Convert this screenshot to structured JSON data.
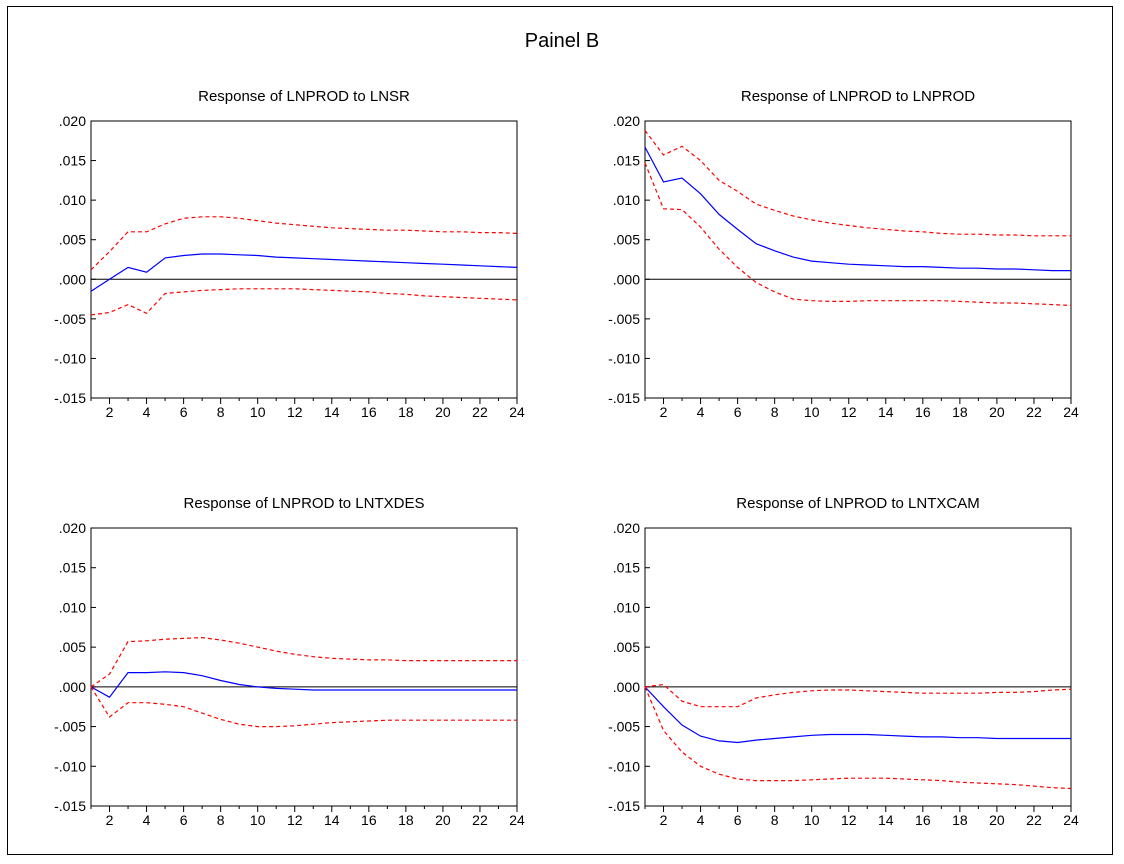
{
  "figure": {
    "title": "Painel B"
  },
  "colors": {
    "response": "#0000ff",
    "band": "#ff0000",
    "zero_line": "#000000"
  },
  "chart_data": [
    {
      "type": "line",
      "title": "Response of LNPROD to LNSR",
      "xlabel": "",
      "ylabel": "",
      "xlim": [
        1,
        24
      ],
      "ylim": [
        -0.015,
        0.02
      ],
      "xticks": [
        "2",
        "4",
        "6",
        "8",
        "10",
        "12",
        "14",
        "16",
        "18",
        "20",
        "22",
        "24"
      ],
      "yticks": [
        ".020",
        ".015",
        ".010",
        ".005",
        ".000",
        "-.005",
        "-.010",
        "-.015"
      ],
      "x": [
        1,
        2,
        3,
        4,
        5,
        6,
        7,
        8,
        9,
        10,
        11,
        12,
        13,
        14,
        15,
        16,
        17,
        18,
        19,
        20,
        21,
        22,
        23,
        24
      ],
      "series": [
        {
          "role": "response",
          "values": [
            -0.0015,
            0.0,
            0.0015,
            0.0009,
            0.0027,
            0.003,
            0.0032,
            0.0032,
            0.0031,
            0.003,
            0.0028,
            0.0027,
            0.0026,
            0.0025,
            0.0024,
            0.0023,
            0.0022,
            0.0021,
            0.002,
            0.0019,
            0.0018,
            0.0017,
            0.0016,
            0.0015
          ]
        },
        {
          "role": "upper",
          "values": [
            0.0012,
            0.0035,
            0.006,
            0.006,
            0.007,
            0.0077,
            0.0079,
            0.0079,
            0.0077,
            0.0074,
            0.0071,
            0.0069,
            0.0067,
            0.0065,
            0.0064,
            0.0063,
            0.0062,
            0.0062,
            0.0061,
            0.006,
            0.006,
            0.0059,
            0.0059,
            0.0058
          ]
        },
        {
          "role": "lower",
          "values": [
            -0.0045,
            -0.0042,
            -0.0032,
            -0.0043,
            -0.0018,
            -0.0016,
            -0.0014,
            -0.0013,
            -0.0012,
            -0.0012,
            -0.0012,
            -0.0012,
            -0.0013,
            -0.0014,
            -0.0015,
            -0.0016,
            -0.0018,
            -0.0019,
            -0.0021,
            -0.0022,
            -0.0023,
            -0.0024,
            -0.0025,
            -0.0026
          ]
        }
      ]
    },
    {
      "type": "line",
      "title": "Response of LNPROD to LNPROD",
      "xlabel": "",
      "ylabel": "",
      "xlim": [
        1,
        24
      ],
      "ylim": [
        -0.015,
        0.02
      ],
      "xticks": [
        "2",
        "4",
        "6",
        "8",
        "10",
        "12",
        "14",
        "16",
        "18",
        "20",
        "22",
        "24"
      ],
      "yticks": [
        ".020",
        ".015",
        ".010",
        ".005",
        ".000",
        "-.005",
        "-.010",
        "-.015"
      ],
      "x": [
        1,
        2,
        3,
        4,
        5,
        6,
        7,
        8,
        9,
        10,
        11,
        12,
        13,
        14,
        15,
        16,
        17,
        18,
        19,
        20,
        21,
        22,
        23,
        24
      ],
      "series": [
        {
          "role": "response",
          "values": [
            0.0167,
            0.0123,
            0.0128,
            0.0108,
            0.0082,
            0.0063,
            0.0045,
            0.0036,
            0.0028,
            0.0023,
            0.0021,
            0.0019,
            0.0018,
            0.0017,
            0.0016,
            0.0016,
            0.0015,
            0.0014,
            0.0014,
            0.0013,
            0.0013,
            0.0012,
            0.0011,
            0.0011
          ]
        },
        {
          "role": "upper",
          "values": [
            0.0188,
            0.0157,
            0.0168,
            0.015,
            0.0125,
            0.0111,
            0.0095,
            0.0087,
            0.008,
            0.0075,
            0.0071,
            0.0068,
            0.0065,
            0.0063,
            0.0061,
            0.006,
            0.0058,
            0.0057,
            0.0057,
            0.0056,
            0.0056,
            0.0055,
            0.0055,
            0.0055
          ]
        },
        {
          "role": "lower",
          "values": [
            0.0147,
            0.0089,
            0.0088,
            0.0066,
            0.0038,
            0.0015,
            -0.0004,
            -0.0016,
            -0.0025,
            -0.0027,
            -0.0028,
            -0.0028,
            -0.0027,
            -0.0027,
            -0.0027,
            -0.0027,
            -0.0027,
            -0.0028,
            -0.0029,
            -0.003,
            -0.003,
            -0.0031,
            -0.0032,
            -0.0033
          ]
        }
      ]
    },
    {
      "type": "line",
      "title": "Response of LNPROD to LNTXDES",
      "xlabel": "",
      "ylabel": "",
      "xlim": [
        1,
        24
      ],
      "ylim": [
        -0.015,
        0.02
      ],
      "xticks": [
        "2",
        "4",
        "6",
        "8",
        "10",
        "12",
        "14",
        "16",
        "18",
        "20",
        "22",
        "24"
      ],
      "yticks": [
        ".020",
        ".015",
        ".010",
        ".005",
        ".000",
        "-.005",
        "-.010",
        "-.015"
      ],
      "x": [
        1,
        2,
        3,
        4,
        5,
        6,
        7,
        8,
        9,
        10,
        11,
        12,
        13,
        14,
        15,
        16,
        17,
        18,
        19,
        20,
        21,
        22,
        23,
        24
      ],
      "series": [
        {
          "role": "response",
          "values": [
            0.0,
            -0.0013,
            0.0018,
            0.0018,
            0.0019,
            0.0018,
            0.0014,
            0.0008,
            0.0003,
            0.0,
            -0.0002,
            -0.0003,
            -0.0004,
            -0.0004,
            -0.0004,
            -0.0004,
            -0.0004,
            -0.0004,
            -0.0004,
            -0.0004,
            -0.0004,
            -0.0004,
            -0.0004,
            -0.0004
          ]
        },
        {
          "role": "upper",
          "values": [
            0.0,
            0.0016,
            0.0057,
            0.0058,
            0.006,
            0.0061,
            0.0062,
            0.0059,
            0.0055,
            0.005,
            0.0045,
            0.0041,
            0.0038,
            0.0036,
            0.0035,
            0.0034,
            0.0034,
            0.0033,
            0.0033,
            0.0033,
            0.0033,
            0.0033,
            0.0033,
            0.0033
          ]
        },
        {
          "role": "lower",
          "values": [
            0.0,
            -0.0038,
            -0.002,
            -0.002,
            -0.0022,
            -0.0025,
            -0.0033,
            -0.0041,
            -0.0047,
            -0.005,
            -0.005,
            -0.0049,
            -0.0047,
            -0.0045,
            -0.0044,
            -0.0043,
            -0.0042,
            -0.0042,
            -0.0042,
            -0.0042,
            -0.0042,
            -0.0042,
            -0.0042,
            -0.0042
          ]
        }
      ]
    },
    {
      "type": "line",
      "title": "Response of LNPROD to LNTXCAM",
      "xlabel": "",
      "ylabel": "",
      "xlim": [
        1,
        24
      ],
      "ylim": [
        -0.015,
        0.02
      ],
      "xticks": [
        "2",
        "4",
        "6",
        "8",
        "10",
        "12",
        "14",
        "16",
        "18",
        "20",
        "22",
        "24"
      ],
      "yticks": [
        ".020",
        ".015",
        ".010",
        ".005",
        ".000",
        "-.005",
        "-.010",
        "-.015"
      ],
      "x": [
        1,
        2,
        3,
        4,
        5,
        6,
        7,
        8,
        9,
        10,
        11,
        12,
        13,
        14,
        15,
        16,
        17,
        18,
        19,
        20,
        21,
        22,
        23,
        24
      ],
      "series": [
        {
          "role": "response",
          "values": [
            0.0,
            -0.0025,
            -0.0048,
            -0.0062,
            -0.0068,
            -0.007,
            -0.0067,
            -0.0065,
            -0.0063,
            -0.0061,
            -0.006,
            -0.006,
            -0.006,
            -0.0061,
            -0.0062,
            -0.0063,
            -0.0063,
            -0.0064,
            -0.0064,
            -0.0065,
            -0.0065,
            -0.0065,
            -0.0065,
            -0.0065
          ]
        },
        {
          "role": "upper",
          "values": [
            0.0,
            0.0003,
            -0.0018,
            -0.0025,
            -0.0025,
            -0.0025,
            -0.0014,
            -0.001,
            -0.0007,
            -0.0005,
            -0.0004,
            -0.0004,
            -0.0005,
            -0.0006,
            -0.0007,
            -0.0008,
            -0.0008,
            -0.0008,
            -0.0008,
            -0.0007,
            -0.0007,
            -0.0006,
            -0.0004,
            -0.0003
          ]
        },
        {
          "role": "lower",
          "values": [
            0.0,
            -0.0055,
            -0.0082,
            -0.01,
            -0.011,
            -0.0116,
            -0.0118,
            -0.0118,
            -0.0118,
            -0.0117,
            -0.0116,
            -0.0115,
            -0.0115,
            -0.0115,
            -0.0116,
            -0.0117,
            -0.0118,
            -0.012,
            -0.0121,
            -0.0122,
            -0.0123,
            -0.0125,
            -0.0127,
            -0.0128
          ]
        }
      ]
    }
  ]
}
